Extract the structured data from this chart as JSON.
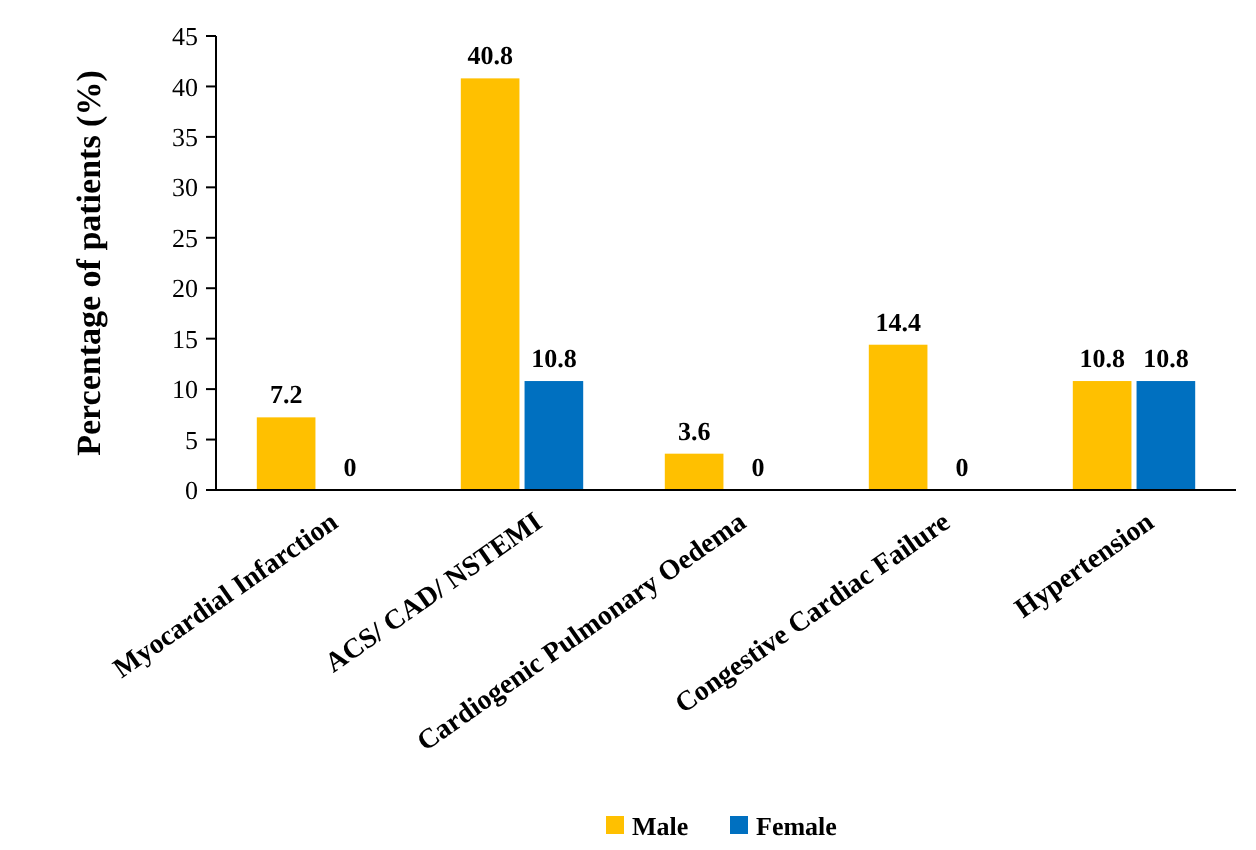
{
  "chart_data": {
    "type": "bar",
    "ylabel": "Percentage of patients (%)",
    "categories": [
      "Myocardial Infarction",
      "ACS/ CAD/ NSTEMI",
      "Cardiogenic Pulmonary Oedema",
      "Congestive Cardiac Failure",
      "Hypertension"
    ],
    "series": [
      {
        "name": "Male",
        "color": "#ffc000",
        "values": [
          7.2,
          40.8,
          3.6,
          14.4,
          10.8
        ]
      },
      {
        "name": "Female",
        "color": "#0070c0",
        "values": [
          0,
          10.8,
          0,
          0,
          10.8
        ]
      }
    ],
    "ylim": [
      0,
      45
    ],
    "yticks": [
      0,
      5,
      10,
      15,
      20,
      25,
      30,
      35,
      40,
      45
    ],
    "grid": false,
    "legend": "bottom",
    "data_labels": true
  }
}
